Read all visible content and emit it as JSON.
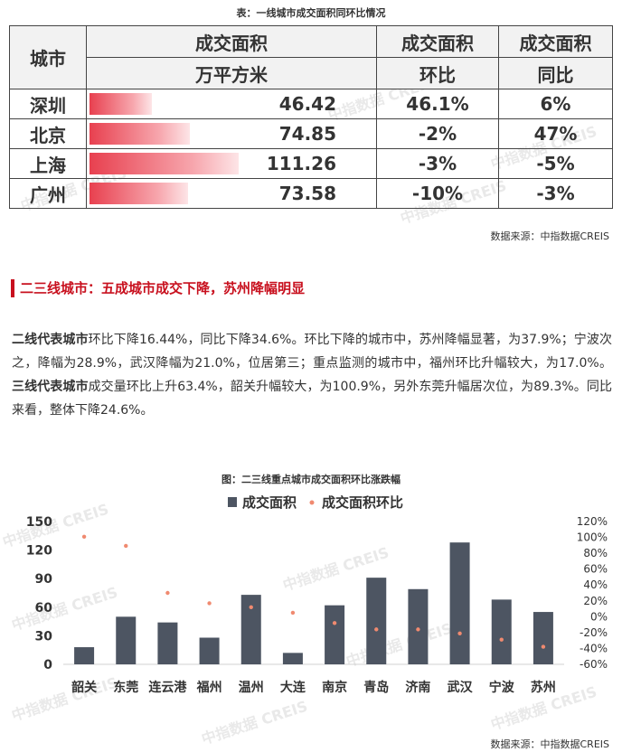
{
  "table": {
    "title": "表：一线城市成交面积同环比情况",
    "headers": {
      "city": "城市",
      "area_line1": "成交面积",
      "area_line2": "万平方米",
      "hb_line1": "成交面积",
      "hb_line2": "环比",
      "tb_line1": "成交面积",
      "tb_line2": "同比"
    },
    "bar_max": 111.26,
    "bar_color": "#e8404f",
    "rows": [
      {
        "city": "深圳",
        "area": "46.42",
        "value": 46.42,
        "hb": "46.1%",
        "tb": "6%"
      },
      {
        "city": "北京",
        "area": "74.85",
        "value": 74.85,
        "hb": "-2%",
        "tb": "47%"
      },
      {
        "city": "上海",
        "area": "111.26",
        "value": 111.26,
        "hb": "-3%",
        "tb": "-5%"
      },
      {
        "city": "广州",
        "area": "73.58",
        "value": 73.58,
        "hb": "-10%",
        "tb": "-3%"
      }
    ],
    "source": "数据来源：中指数据CREIS"
  },
  "section": {
    "heading": "二三线城市：五成城市成交下降，苏州降幅明显"
  },
  "paragraph": {
    "p1_bold": "二线代表城市",
    "p1_text": "环比下降16.44%，同比下降34.6%。环比下降的城市中，苏州降幅显著，为37.9%；宁波次之，降幅为28.9%，武汉降幅为21.0%，位居第三；重点监测的城市中，福州环比升幅较大，为17.0%。",
    "p2_bold": "三线代表城市",
    "p2_text": "成交量环比上升63.4%，韶关升幅较大，为100.9%，另外东莞升幅居次位，为89.3%。同比来看，整体下降24.6%。"
  },
  "watermark": "中指数据 CREIS",
  "chart_data": {
    "type": "bar",
    "title": "图：二三线重点城市成交面积环比涨跌幅",
    "categories": [
      "韶关",
      "东莞",
      "连云港",
      "福州",
      "温州",
      "大连",
      "南京",
      "青岛",
      "济南",
      "武汉",
      "宁波",
      "苏州"
    ],
    "series": [
      {
        "name": "成交面积",
        "kind": "bar",
        "axis": "left",
        "color": "#4d5562",
        "values": [
          18,
          50,
          44,
          28,
          73,
          12,
          62,
          91,
          79,
          128,
          68,
          55
        ]
      },
      {
        "name": "成交面积环比",
        "kind": "scatter",
        "axis": "right",
        "color": "#f08a70",
        "values": [
          100.9,
          89.3,
          30,
          17.0,
          12,
          5,
          -8,
          -16,
          -16,
          -21.0,
          -28.9,
          -37.9
        ]
      }
    ],
    "left_axis": {
      "min": 0,
      "max": 150,
      "ticks": [
        0,
        30,
        60,
        90,
        120,
        150
      ]
    },
    "right_axis": {
      "min": -60,
      "max": 120,
      "ticks": [
        -60,
        -40,
        -20,
        0,
        20,
        40,
        60,
        80,
        100,
        120
      ],
      "unit": "%"
    },
    "legend_position": "top-center",
    "grid": false,
    "source": "数据来源：中指数据CREIS"
  }
}
